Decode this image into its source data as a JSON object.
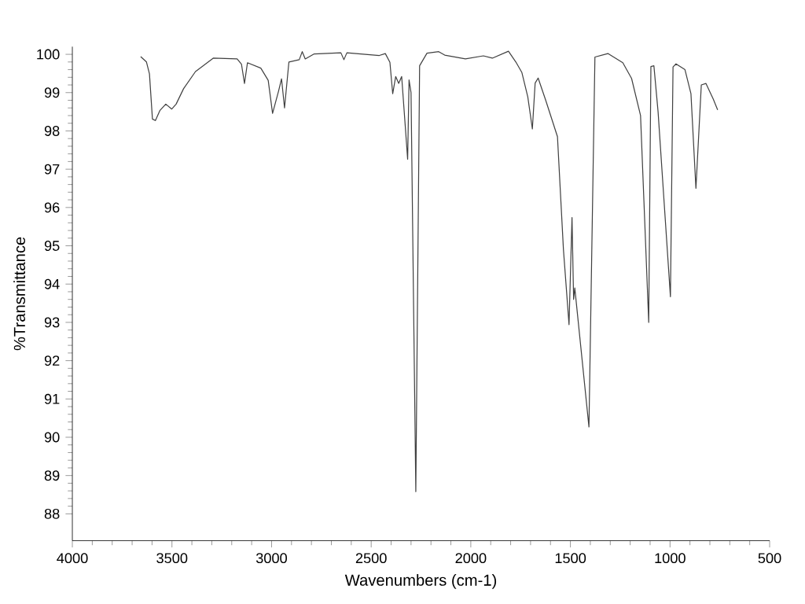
{
  "chart_data": {
    "type": "line",
    "xlabel": "Wavenumbers (cm-1)",
    "ylabel": "%Transmittance",
    "x": [
      3657,
      3628,
      3613,
      3598,
      3583,
      3561,
      3531,
      3501,
      3479,
      3442,
      3382,
      3293,
      3173,
      3151,
      3136,
      3121,
      3054,
      3017,
      2995,
      2965,
      2950,
      2935,
      2913,
      2861,
      2846,
      2831,
      2786,
      2652,
      2637,
      2622,
      2459,
      2429,
      2406,
      2392,
      2377,
      2362,
      2347,
      2317,
      2310,
      2300,
      2276,
      2257,
      2220,
      2161,
      2131,
      2027,
      1937,
      1892,
      1811,
      1774,
      1744,
      1714,
      1691,
      1677,
      1662,
      1624,
      1565,
      1535,
      1507,
      1492,
      1484,
      1478,
      1407,
      1377,
      1312,
      1237,
      1193,
      1148,
      1107,
      1096,
      1081,
      1060,
      998,
      985,
      970,
      925,
      895,
      870,
      843,
      820,
      783,
      761
    ],
    "series": [
      {
        "color": "#404040",
        "values": [
          99.94,
          99.8,
          99.49,
          98.31,
          98.27,
          98.53,
          98.7,
          98.57,
          98.7,
          99.1,
          99.55,
          99.9,
          99.88,
          99.74,
          99.24,
          99.78,
          99.64,
          99.32,
          98.46,
          99.04,
          99.36,
          98.6,
          99.8,
          99.86,
          100.07,
          99.88,
          100.01,
          100.04,
          99.86,
          100.04,
          99.97,
          100.02,
          99.79,
          98.97,
          99.42,
          99.24,
          99.42,
          97.26,
          99.33,
          99.0,
          88.58,
          99.7,
          100.03,
          100.07,
          99.98,
          99.88,
          99.96,
          99.9,
          100.08,
          99.8,
          99.53,
          98.89,
          98.05,
          99.25,
          99.38,
          98.8,
          97.85,
          94.9,
          92.94,
          95.74,
          93.6,
          93.9,
          90.27,
          99.93,
          100.02,
          99.78,
          99.37,
          98.4,
          93.0,
          99.68,
          99.7,
          98.5,
          93.67,
          99.67,
          99.75,
          99.6,
          98.97,
          96.5,
          99.2,
          99.24,
          98.83,
          98.55
        ]
      }
    ],
    "xlim": [
      4000,
      500
    ],
    "xticks": [
      4000,
      3500,
      3000,
      2500,
      2000,
      1500,
      1000,
      500
    ],
    "ylim": [
      87.3,
      100.2
    ],
    "yticks": [
      88,
      89,
      90,
      91,
      92,
      93,
      94,
      95,
      96,
      97,
      98,
      99,
      100
    ],
    "grid": false,
    "legend": false,
    "marker": "none",
    "line_style": "solid"
  }
}
